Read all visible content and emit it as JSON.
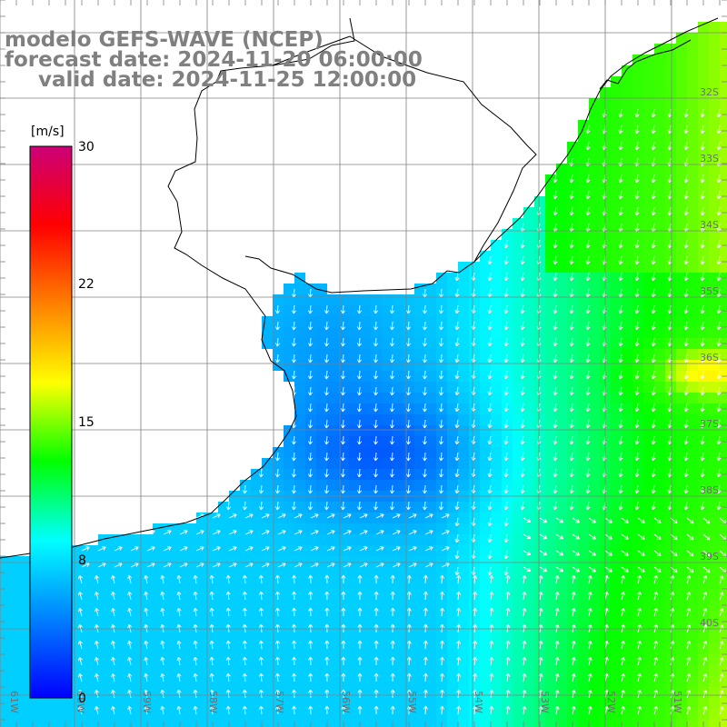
{
  "title": {
    "line1": "modelo GEFS-WAVE (NCEP)",
    "line2": "forecast date: 2024-11-20 06:00:00",
    "line3": "valid date: 2024-11-25 12:00:00"
  },
  "colorbar": {
    "unit": "[m/s]",
    "ticks": [
      "30",
      "22",
      "15",
      "8",
      "0"
    ],
    "range": [
      0,
      30
    ],
    "colors": [
      "#0000ff",
      "#0080ff",
      "#00ffff",
      "#00ff00",
      "#ffff00",
      "#ff8000",
      "#ff0000",
      "#cc0077"
    ]
  },
  "grid": {
    "lon_labels": [
      "61W",
      "60W",
      "59W",
      "58W",
      "57W",
      "56W",
      "55W",
      "54W",
      "53W",
      "52W",
      "51W"
    ],
    "lat_labels": [
      "32S",
      "33S",
      "34S",
      "35S",
      "36S",
      "37S",
      "38S",
      "39S",
      "40S"
    ]
  },
  "colors": {
    "land": "#ffffff",
    "coast": "#000000",
    "grid": "#808080",
    "arrow": "#ffffff"
  }
}
